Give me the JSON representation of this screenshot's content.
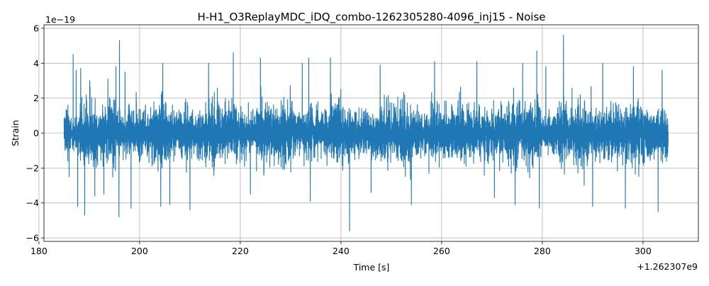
{
  "chart_data": {
    "type": "line",
    "title": "H-H1_O3ReplayMDC_iDQ_combo-1262305280-4096_inj15 - Noise",
    "xlabel": "Time [s]",
    "ylabel": "Strain",
    "x_offset_label": "+1.262307e9",
    "y_scale_label": "1e−19",
    "xlim": [
      181,
      311
    ],
    "ylim": [
      -6.2,
      6.2
    ],
    "x_ticks": [
      180,
      200,
      220,
      240,
      260,
      280,
      300
    ],
    "x_tick_labels": [
      "180",
      "200",
      "220",
      "240",
      "260",
      "280",
      "300"
    ],
    "y_ticks": [
      -6,
      -4,
      -2,
      0,
      2,
      4,
      6
    ],
    "y_tick_labels": [
      "−6",
      "−4",
      "−2",
      "0",
      "2",
      "4",
      "6"
    ],
    "grid": true,
    "series": [
      {
        "color": "#1f77b4",
        "x_range": [
          185,
          305
        ],
        "typical_amplitude": 1.4,
        "peaks": [
          {
            "x": 186.0,
            "y": 3.3
          },
          {
            "x": 186.8,
            "y": 4.5
          },
          {
            "x": 187.4,
            "y": 3.6
          },
          {
            "x": 188.3,
            "y": 3.7
          },
          {
            "x": 190.1,
            "y": 3.0
          },
          {
            "x": 193.7,
            "y": 3.1
          },
          {
            "x": 195.3,
            "y": 3.8
          },
          {
            "x": 196.0,
            "y": 5.3
          },
          {
            "x": 197.1,
            "y": 3.5
          },
          {
            "x": 204.6,
            "y": 4.0
          },
          {
            "x": 213.7,
            "y": 4.0
          },
          {
            "x": 218.6,
            "y": 4.6
          },
          {
            "x": 224.0,
            "y": 4.3
          },
          {
            "x": 232.3,
            "y": 4.0
          },
          {
            "x": 233.6,
            "y": 4.3
          },
          {
            "x": 237.9,
            "y": 4.3
          },
          {
            "x": 247.8,
            "y": 3.9
          },
          {
            "x": 258.6,
            "y": 4.1
          },
          {
            "x": 267.0,
            "y": 4.1
          },
          {
            "x": 276.1,
            "y": 4.0
          },
          {
            "x": 278.9,
            "y": 4.7
          },
          {
            "x": 280.7,
            "y": 3.8
          },
          {
            "x": 284.2,
            "y": 5.6
          },
          {
            "x": 292.0,
            "y": 4.0
          },
          {
            "x": 298.1,
            "y": 3.8
          },
          {
            "x": 303.8,
            "y": 3.6
          }
        ],
        "troughs": [
          {
            "x": 186.0,
            "y": -2.5
          },
          {
            "x": 187.7,
            "y": -4.2
          },
          {
            "x": 189.1,
            "y": -4.7
          },
          {
            "x": 191.1,
            "y": -3.6
          },
          {
            "x": 192.9,
            "y": -3.5
          },
          {
            "x": 195.9,
            "y": -4.8
          },
          {
            "x": 198.3,
            "y": -4.3
          },
          {
            "x": 204.2,
            "y": -4.2
          },
          {
            "x": 206.0,
            "y": -4.1
          },
          {
            "x": 210.0,
            "y": -4.4
          },
          {
            "x": 222.0,
            "y": -3.5
          },
          {
            "x": 233.9,
            "y": -3.9
          },
          {
            "x": 241.7,
            "y": -5.6
          },
          {
            "x": 246.0,
            "y": -3.4
          },
          {
            "x": 254.0,
            "y": -4.1
          },
          {
            "x": 270.5,
            "y": -3.7
          },
          {
            "x": 274.6,
            "y": -4.1
          },
          {
            "x": 279.4,
            "y": -4.3
          },
          {
            "x": 290.0,
            "y": -4.2
          },
          {
            "x": 296.5,
            "y": -4.3
          },
          {
            "x": 303.0,
            "y": -4.5
          }
        ]
      }
    ]
  }
}
